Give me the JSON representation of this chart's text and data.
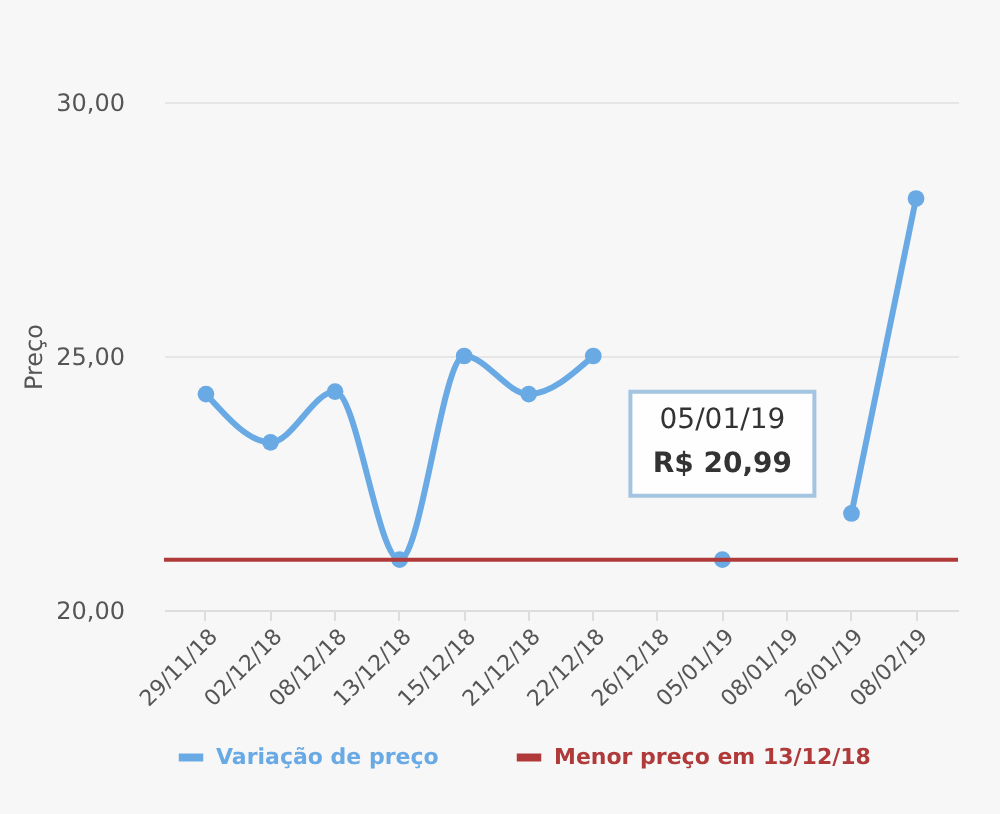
{
  "chart_data": {
    "type": "line",
    "ylabel": "Preço",
    "categories": [
      "29/11/18",
      "02/12/18",
      "08/12/18",
      "13/12/18",
      "15/12/18",
      "21/12/18",
      "22/12/18",
      "26/12/18",
      "05/01/19",
      "08/01/19",
      "26/01/19",
      "08/02/19"
    ],
    "series": [
      {
        "name": "Variação de preço",
        "color": "#6aaae4",
        "values": [
          24.25,
          23.3,
          24.3,
          20.99,
          25.0,
          24.25,
          25.0,
          null,
          20.99,
          null,
          21.9,
          28.1
        ]
      }
    ],
    "ylim": [
      20,
      30
    ],
    "yticks": [
      {
        "value": 20,
        "label": "20,00"
      },
      {
        "value": 25,
        "label": "25,00"
      },
      {
        "value": 30,
        "label": "30,00"
      }
    ],
    "ref_lines": [
      {
        "axis": "y",
        "value": 20.99,
        "label": "Menor preço em 13/12/18",
        "color": "#b03a3a"
      }
    ],
    "annotations": [
      {
        "text": "05/01/19\nR$ 20,99",
        "x": "05/01/19",
        "y": 20.99
      }
    ],
    "grid": "y",
    "marker": "circle",
    "legend": "bottom"
  }
}
